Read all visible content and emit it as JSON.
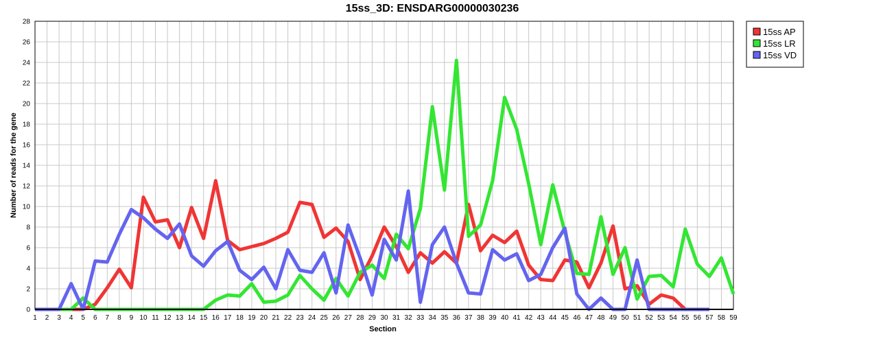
{
  "chart_data": {
    "type": "line",
    "title": "15ss_3D: ENSDARG00000030236",
    "xlabel": "Section",
    "ylabel": "Number of reads for the gene",
    "xlim": [
      1,
      59
    ],
    "ylim": [
      0,
      28
    ],
    "y_ticks": [
      0,
      2,
      4,
      6,
      8,
      10,
      12,
      14,
      16,
      18,
      20,
      22,
      24,
      26,
      28
    ],
    "x": [
      1,
      2,
      3,
      4,
      5,
      6,
      7,
      8,
      9,
      10,
      11,
      12,
      13,
      14,
      15,
      16,
      17,
      18,
      19,
      20,
      21,
      22,
      23,
      24,
      25,
      26,
      27,
      28,
      29,
      30,
      31,
      32,
      33,
      34,
      35,
      36,
      37,
      38,
      39,
      40,
      41,
      42,
      43,
      44,
      45,
      46,
      47,
      48,
      49,
      50,
      51,
      52,
      53,
      54,
      55,
      56,
      57,
      58,
      59
    ],
    "grid": true,
    "legend_position": "top-right",
    "series": [
      {
        "name": "15ss AP",
        "color": "#f03535",
        "values": [
          0,
          0,
          0,
          0,
          0,
          0.5,
          2.1,
          3.9,
          2.1,
          10.9,
          8.5,
          8.7,
          6.0,
          9.9,
          6.9,
          12.5,
          6.7,
          5.8,
          6.1,
          6.4,
          6.9,
          7.5,
          10.4,
          10.2,
          7.0,
          7.9,
          6.6,
          2.9,
          5.2,
          8.0,
          6.1,
          3.6,
          5.5,
          4.5,
          5.6,
          4.5,
          10.2,
          5.7,
          7.2,
          6.5,
          7.6,
          4.3,
          2.9,
          2.8,
          4.8,
          4.6,
          2.1,
          4.5,
          8.1,
          2.0,
          2.3,
          0.5,
          1.4,
          1.1,
          0,
          0,
          0,
          null,
          null
        ]
      },
      {
        "name": "15ss LR",
        "color": "#33e633",
        "values": [
          0,
          0,
          0,
          0,
          1.1,
          0,
          0,
          0,
          0,
          0,
          0,
          0,
          0,
          0,
          0,
          0.9,
          1.4,
          1.3,
          2.5,
          0.7,
          0.8,
          1.4,
          3.3,
          2.0,
          0.9,
          3.0,
          1.3,
          3.6,
          4.3,
          3.0,
          7.3,
          5.9,
          9.8,
          19.7,
          11.6,
          24.2,
          7.1,
          8.2,
          12.5,
          20.6,
          17.5,
          12.2,
          6.3,
          12.1,
          7.5,
          3.5,
          3.4,
          9.0,
          3.4,
          6.0,
          1.0,
          3.2,
          3.3,
          2.2,
          7.8,
          4.4,
          3.2,
          5.0,
          1.5
        ]
      },
      {
        "name": "15ss VD",
        "color": "#6464f0",
        "values": [
          0,
          0,
          0,
          2.5,
          0,
          4.7,
          4.6,
          7.3,
          9.7,
          8.9,
          7.8,
          6.9,
          8.3,
          5.2,
          4.2,
          5.7,
          6.6,
          3.8,
          2.9,
          4.1,
          2.0,
          5.8,
          3.8,
          3.6,
          5.5,
          1.6,
          8.2,
          5.0,
          1.4,
          6.8,
          4.8,
          11.5,
          0.7,
          6.3,
          8.0,
          4.5,
          1.6,
          1.5,
          5.8,
          4.8,
          5.4,
          2.8,
          3.4,
          6.0,
          7.9,
          1.5,
          0,
          1.1,
          0,
          0,
          4.8,
          0,
          0,
          0,
          0,
          0,
          0,
          null,
          null
        ]
      }
    ]
  }
}
